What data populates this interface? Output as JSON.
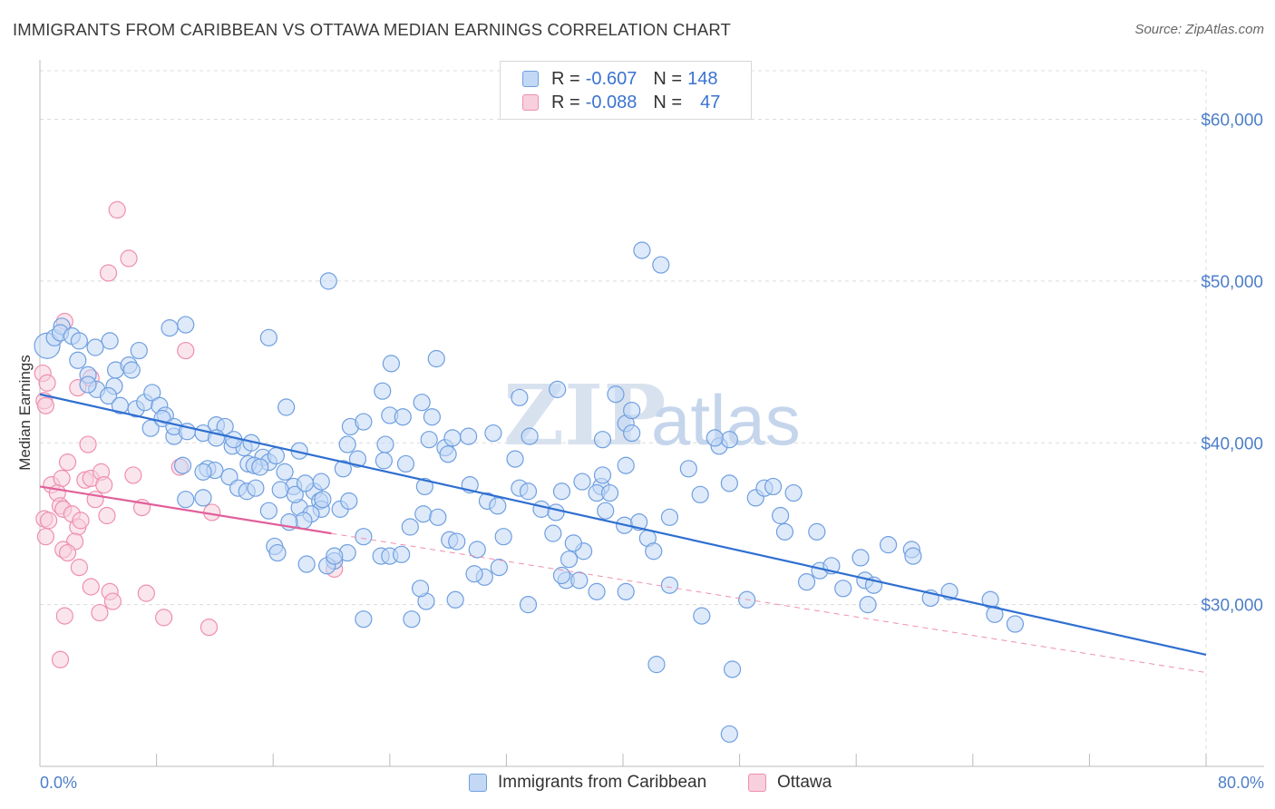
{
  "title": "IMMIGRANTS FROM CARIBBEAN VS OTTAWA MEDIAN EARNINGS CORRELATION CHART",
  "source": "Source: ZipAtlas.com",
  "watermark": {
    "zip": "ZIP",
    "atlas": "atlas"
  },
  "legend": {
    "rows": [
      {
        "r_label": "R = ",
        "r_value": "-0.607",
        "n_label": "N = ",
        "n_value": "148",
        "color": "#6f9fe0",
        "fill": "#c3d8f5"
      },
      {
        "r_label": "R = ",
        "r_value": "-0.088",
        "n_label": "N = ",
        "n_value": "47",
        "color": "#ee8fb0",
        "fill": "#f8cfdd"
      }
    ]
  },
  "bottom_legend": [
    {
      "label": "Immigrants from Caribbean",
      "color": "#6f9fe0",
      "fill": "#c3d8f5"
    },
    {
      "label": "Ottawa",
      "color": "#ee8fb0",
      "fill": "#f8cfdd"
    }
  ],
  "chart_data": {
    "type": "scatter",
    "title": "IMMIGRANTS FROM CARIBBEAN VS OTTAWA MEDIAN EARNINGS CORRELATION CHART",
    "xlabel": "",
    "ylabel": "Median Earnings",
    "xlim": [
      0,
      80
    ],
    "ylim": [
      20000,
      63000
    ],
    "x_tick_labels": [
      "0.0%",
      "80.0%"
    ],
    "y_ticks": [
      30000,
      40000,
      50000,
      60000
    ],
    "y_tick_labels": [
      "$30,000",
      "$40,000",
      "$50,000",
      "$60,000"
    ],
    "grid": "horizontal dashed",
    "legend_position": "top-center",
    "series": [
      {
        "name": "Immigrants from Caribbean",
        "color": "#6f9fe0",
        "fill": "#c3d8f5",
        "trend": {
          "x": [
            0,
            80
          ],
          "y": [
            43000,
            26900
          ],
          "color": "#2f6fd0"
        },
        "points": [
          [
            0.5,
            46000
          ],
          [
            1,
            46500
          ],
          [
            1.5,
            47200
          ],
          [
            1.4,
            46800
          ],
          [
            2.2,
            46600
          ],
          [
            2.7,
            46300
          ],
          [
            2.6,
            45100
          ],
          [
            3.3,
            44200
          ],
          [
            3.9,
            43300
          ],
          [
            3.3,
            43600
          ],
          [
            4.8,
            46300
          ],
          [
            3.8,
            45900
          ],
          [
            5.2,
            44500
          ],
          [
            5.1,
            43500
          ],
          [
            4.7,
            42900
          ],
          [
            6.6,
            42100
          ],
          [
            5.5,
            42300
          ],
          [
            6.1,
            44800
          ],
          [
            6.3,
            44500
          ],
          [
            6.8,
            45700
          ],
          [
            7.2,
            42500
          ],
          [
            8.9,
            47100
          ],
          [
            10,
            47300
          ],
          [
            7.6,
            40900
          ],
          [
            7.7,
            43100
          ],
          [
            8.2,
            42300
          ],
          [
            8.6,
            41700
          ],
          [
            9.2,
            40400
          ],
          [
            8.4,
            41500
          ],
          [
            9.2,
            41000
          ],
          [
            10.1,
            40700
          ],
          [
            12.1,
            41100
          ],
          [
            12.7,
            41000
          ],
          [
            11.2,
            40600
          ],
          [
            12.1,
            40300
          ],
          [
            13.2,
            39800
          ],
          [
            14,
            39700
          ],
          [
            15.3,
            39100
          ],
          [
            15.7,
            38800
          ],
          [
            9.8,
            38600
          ],
          [
            11.5,
            38400
          ],
          [
            12,
            38300
          ],
          [
            13,
            37900
          ],
          [
            11.2,
            38200
          ],
          [
            14.3,
            38700
          ],
          [
            14.7,
            38600
          ],
          [
            15.1,
            38500
          ],
          [
            16.8,
            38200
          ],
          [
            17.4,
            37300
          ],
          [
            18.8,
            37000
          ],
          [
            19.2,
            36400
          ],
          [
            17.8,
            36000
          ],
          [
            19.3,
            35900
          ],
          [
            20.6,
            35900
          ],
          [
            21.2,
            36400
          ],
          [
            18.6,
            35600
          ],
          [
            18.1,
            35200
          ],
          [
            15.7,
            35800
          ],
          [
            10,
            36500
          ],
          [
            11.2,
            36600
          ],
          [
            13.6,
            37200
          ],
          [
            14.2,
            37000
          ],
          [
            16.1,
            33600
          ],
          [
            16.3,
            33200
          ],
          [
            20.2,
            32700
          ],
          [
            21.1,
            33200
          ],
          [
            22.2,
            34200
          ],
          [
            23.4,
            33000
          ],
          [
            24,
            33000
          ],
          [
            24.8,
            33100
          ],
          [
            25.4,
            34800
          ],
          [
            26.3,
            35600
          ],
          [
            27.3,
            35400
          ],
          [
            28.1,
            34000
          ],
          [
            28.6,
            33900
          ],
          [
            30,
            33400
          ],
          [
            30.7,
            36400
          ],
          [
            31.4,
            36100
          ],
          [
            31.8,
            34200
          ],
          [
            32.9,
            37200
          ],
          [
            33.5,
            37000
          ],
          [
            34.4,
            35900
          ],
          [
            35.4,
            35700
          ],
          [
            35.8,
            37000
          ],
          [
            35.2,
            34400
          ],
          [
            36.3,
            32800
          ],
          [
            37.3,
            33300
          ],
          [
            36.6,
            33800
          ],
          [
            37.2,
            37600
          ],
          [
            38.5,
            37300
          ],
          [
            38.8,
            35800
          ],
          [
            38.2,
            36900
          ],
          [
            39.1,
            36900
          ],
          [
            40.1,
            34900
          ],
          [
            41.1,
            35100
          ],
          [
            41.7,
            34100
          ],
          [
            42.1,
            33300
          ],
          [
            43.2,
            35400
          ],
          [
            45.3,
            36800
          ],
          [
            47.3,
            37500
          ],
          [
            46.6,
            39800
          ],
          [
            47.3,
            40200
          ],
          [
            46.3,
            40300
          ],
          [
            49.1,
            36600
          ],
          [
            49.7,
            37200
          ],
          [
            50.3,
            37300
          ],
          [
            50.8,
            35500
          ],
          [
            51.1,
            34500
          ],
          [
            51.7,
            36900
          ],
          [
            52.6,
            31400
          ],
          [
            53.5,
            32100
          ],
          [
            55.1,
            31000
          ],
          [
            56.6,
            31500
          ],
          [
            57.2,
            31200
          ],
          [
            58.2,
            33700
          ],
          [
            59.8,
            33400
          ],
          [
            62.4,
            30800
          ],
          [
            65.2,
            30300
          ],
          [
            65.5,
            29400
          ],
          [
            66.9,
            28800
          ],
          [
            48.5,
            30300
          ],
          [
            45.4,
            29300
          ],
          [
            43.2,
            31200
          ],
          [
            42.3,
            26300
          ],
          [
            40.2,
            30800
          ],
          [
            38.2,
            30800
          ],
          [
            36.1,
            31500
          ],
          [
            35.8,
            31800
          ],
          [
            33.5,
            30000
          ],
          [
            31.5,
            32300
          ],
          [
            30.5,
            31700
          ],
          [
            29.8,
            31900
          ],
          [
            28.5,
            30300
          ],
          [
            26.5,
            30200
          ],
          [
            26.1,
            31000
          ],
          [
            25.5,
            29100
          ],
          [
            22.2,
            29100
          ],
          [
            19.7,
            32400
          ],
          [
            20.2,
            33000
          ],
          [
            18.3,
            32500
          ],
          [
            17.1,
            35100
          ],
          [
            14.8,
            37200
          ],
          [
            16.2,
            39200
          ],
          [
            13.3,
            40200
          ],
          [
            14.5,
            40000
          ],
          [
            16.5,
            37100
          ],
          [
            17.5,
            36800
          ],
          [
            19.4,
            36500
          ],
          [
            21.1,
            39900
          ],
          [
            21.3,
            41000
          ],
          [
            22.2,
            41300
          ],
          [
            23.7,
            39900
          ],
          [
            24,
            41700
          ],
          [
            24.9,
            41600
          ],
          [
            26.7,
            40200
          ],
          [
            26.9,
            41600
          ],
          [
            27.8,
            39700
          ],
          [
            28.3,
            40300
          ],
          [
            29.4,
            40400
          ],
          [
            29.5,
            37400
          ],
          [
            28,
            39300
          ],
          [
            26.4,
            37300
          ],
          [
            25.1,
            38700
          ],
          [
            23.6,
            38900
          ],
          [
            21.8,
            39000
          ],
          [
            20.8,
            38400
          ],
          [
            19.3,
            37600
          ],
          [
            18.2,
            37500
          ],
          [
            17.8,
            39500
          ],
          [
            32.6,
            39000
          ],
          [
            33.6,
            40400
          ],
          [
            31.1,
            40600
          ],
          [
            38.6,
            40200
          ],
          [
            40.2,
            41200
          ],
          [
            40.6,
            40600
          ],
          [
            32.9,
            42800
          ],
          [
            35.5,
            43300
          ],
          [
            27.2,
            45200
          ],
          [
            24.1,
            44900
          ],
          [
            26.2,
            42500
          ],
          [
            19.8,
            50000
          ],
          [
            15.7,
            46500
          ],
          [
            16.9,
            42200
          ],
          [
            23.5,
            43200
          ],
          [
            41.3,
            51900
          ],
          [
            42.6,
            51000
          ],
          [
            40.6,
            42000
          ],
          [
            39.5,
            43000
          ],
          [
            44.5,
            38400
          ],
          [
            40.2,
            38600
          ],
          [
            38.6,
            38000
          ],
          [
            37,
            31500
          ],
          [
            53.3,
            34500
          ],
          [
            54.3,
            32400
          ],
          [
            56.3,
            32900
          ],
          [
            56.8,
            30000
          ],
          [
            47.5,
            26000
          ],
          [
            47.3,
            22000
          ],
          [
            59.9,
            33000
          ],
          [
            61.1,
            30400
          ]
        ]
      },
      {
        "name": "Ottawa",
        "color": "#ee8fb0",
        "fill": "#f8cfdd",
        "trend": {
          "x": [
            0,
            20
          ],
          "y": [
            37300,
            34400
          ],
          "color": "#e0609a"
        },
        "trend_dashed": {
          "x": [
            20,
            80
          ],
          "y": [
            34400,
            25800
          ]
        },
        "points": [
          [
            0.2,
            44300
          ],
          [
            0.5,
            43700
          ],
          [
            0.3,
            42600
          ],
          [
            0.4,
            42300
          ],
          [
            1.7,
            47500
          ],
          [
            2.6,
            43400
          ],
          [
            3.5,
            44000
          ],
          [
            5.3,
            54400
          ],
          [
            6.1,
            51400
          ],
          [
            4.7,
            50500
          ],
          [
            10,
            45700
          ],
          [
            0.3,
            35300
          ],
          [
            0.4,
            34200
          ],
          [
            0.6,
            35200
          ],
          [
            0.8,
            37400
          ],
          [
            1.5,
            37800
          ],
          [
            1.2,
            36900
          ],
          [
            1.4,
            36100
          ],
          [
            1.6,
            35900
          ],
          [
            1.9,
            38800
          ],
          [
            2.2,
            35600
          ],
          [
            2.6,
            34800
          ],
          [
            2.8,
            35200
          ],
          [
            2.4,
            33900
          ],
          [
            1.6,
            33400
          ],
          [
            1.9,
            33200
          ],
          [
            2.7,
            32300
          ],
          [
            3.1,
            37700
          ],
          [
            3.3,
            39900
          ],
          [
            3.5,
            37800
          ],
          [
            4.2,
            38200
          ],
          [
            4.4,
            37400
          ],
          [
            3.8,
            36500
          ],
          [
            4.6,
            35500
          ],
          [
            6.4,
            38000
          ],
          [
            7,
            36000
          ],
          [
            9.6,
            38500
          ],
          [
            11.8,
            35700
          ],
          [
            3.5,
            31100
          ],
          [
            4.8,
            30800
          ],
          [
            5,
            30200
          ],
          [
            7.3,
            30700
          ],
          [
            4.1,
            29500
          ],
          [
            8.5,
            29200
          ],
          [
            11.6,
            28600
          ],
          [
            1.7,
            29300
          ],
          [
            1.4,
            26600
          ],
          [
            20.2,
            32200
          ]
        ]
      }
    ]
  }
}
